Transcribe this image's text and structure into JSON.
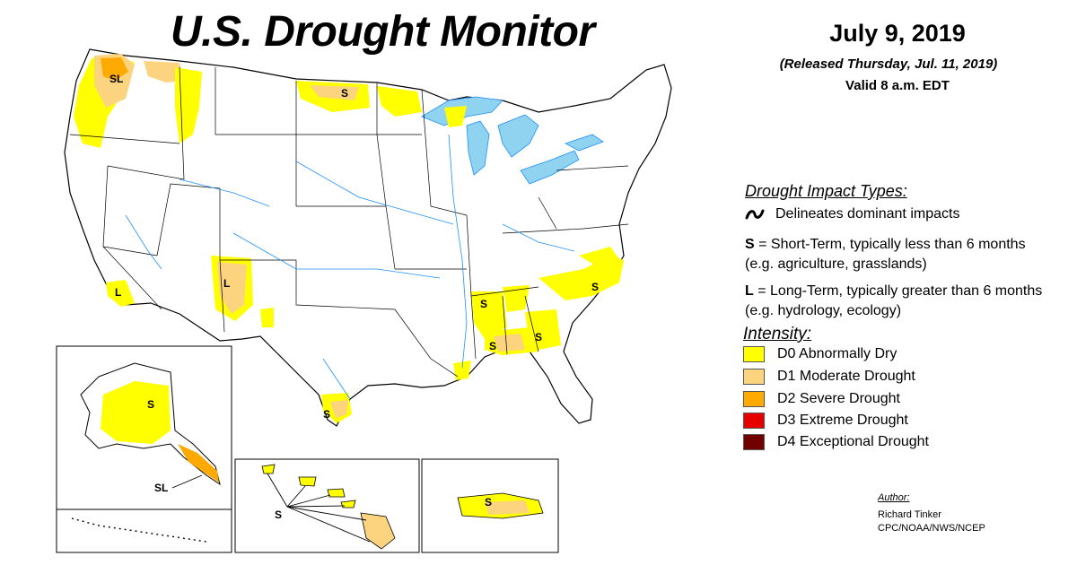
{
  "title": "U.S. Drought Monitor",
  "date": "July 9, 2019",
  "released": "(Released Thursday, Jul. 11, 2019)",
  "valid": "Valid 8 a.m. EDT",
  "impact_heading": "Drought Impact Types:",
  "delineates": "Delineates dominant impacts",
  "short_term": {
    "code": "S",
    "text": " = Short-Term, typically less than 6 months (e.g. agriculture, grasslands)"
  },
  "long_term": {
    "code": "L",
    "text": " = Long-Term, typically greater than 6 months (e.g. hydrology, ecology)"
  },
  "intensity_heading": "Intensity:",
  "legend": [
    {
      "label": "D0 Abnormally Dry",
      "color": "#ffff00"
    },
    {
      "label": "D1 Moderate Drought",
      "color": "#fcd37f"
    },
    {
      "label": "D2 Severe Drought",
      "color": "#ffaa00"
    },
    {
      "label": "D3 Extreme Drought",
      "color": "#e60000"
    },
    {
      "label": "D4 Exceptional Drought",
      "color": "#730000"
    }
  ],
  "author_label": "Author:",
  "author_name": "Richard Tinker",
  "author_org": "CPC/NOAA/NWS/NCEP",
  "map_labels": {
    "wa": "SL",
    "mt": "S",
    "ca": "L",
    "nm": "L",
    "ms": "S",
    "al": "S",
    "ga": "S",
    "nc": "S",
    "tx": "S",
    "ak": "S",
    "ak_panhandle": "SL",
    "hi": "S",
    "pr": "S"
  },
  "colors": {
    "water": "#8fd3f0",
    "river": "#1e90ff",
    "boundary": "#000000"
  }
}
